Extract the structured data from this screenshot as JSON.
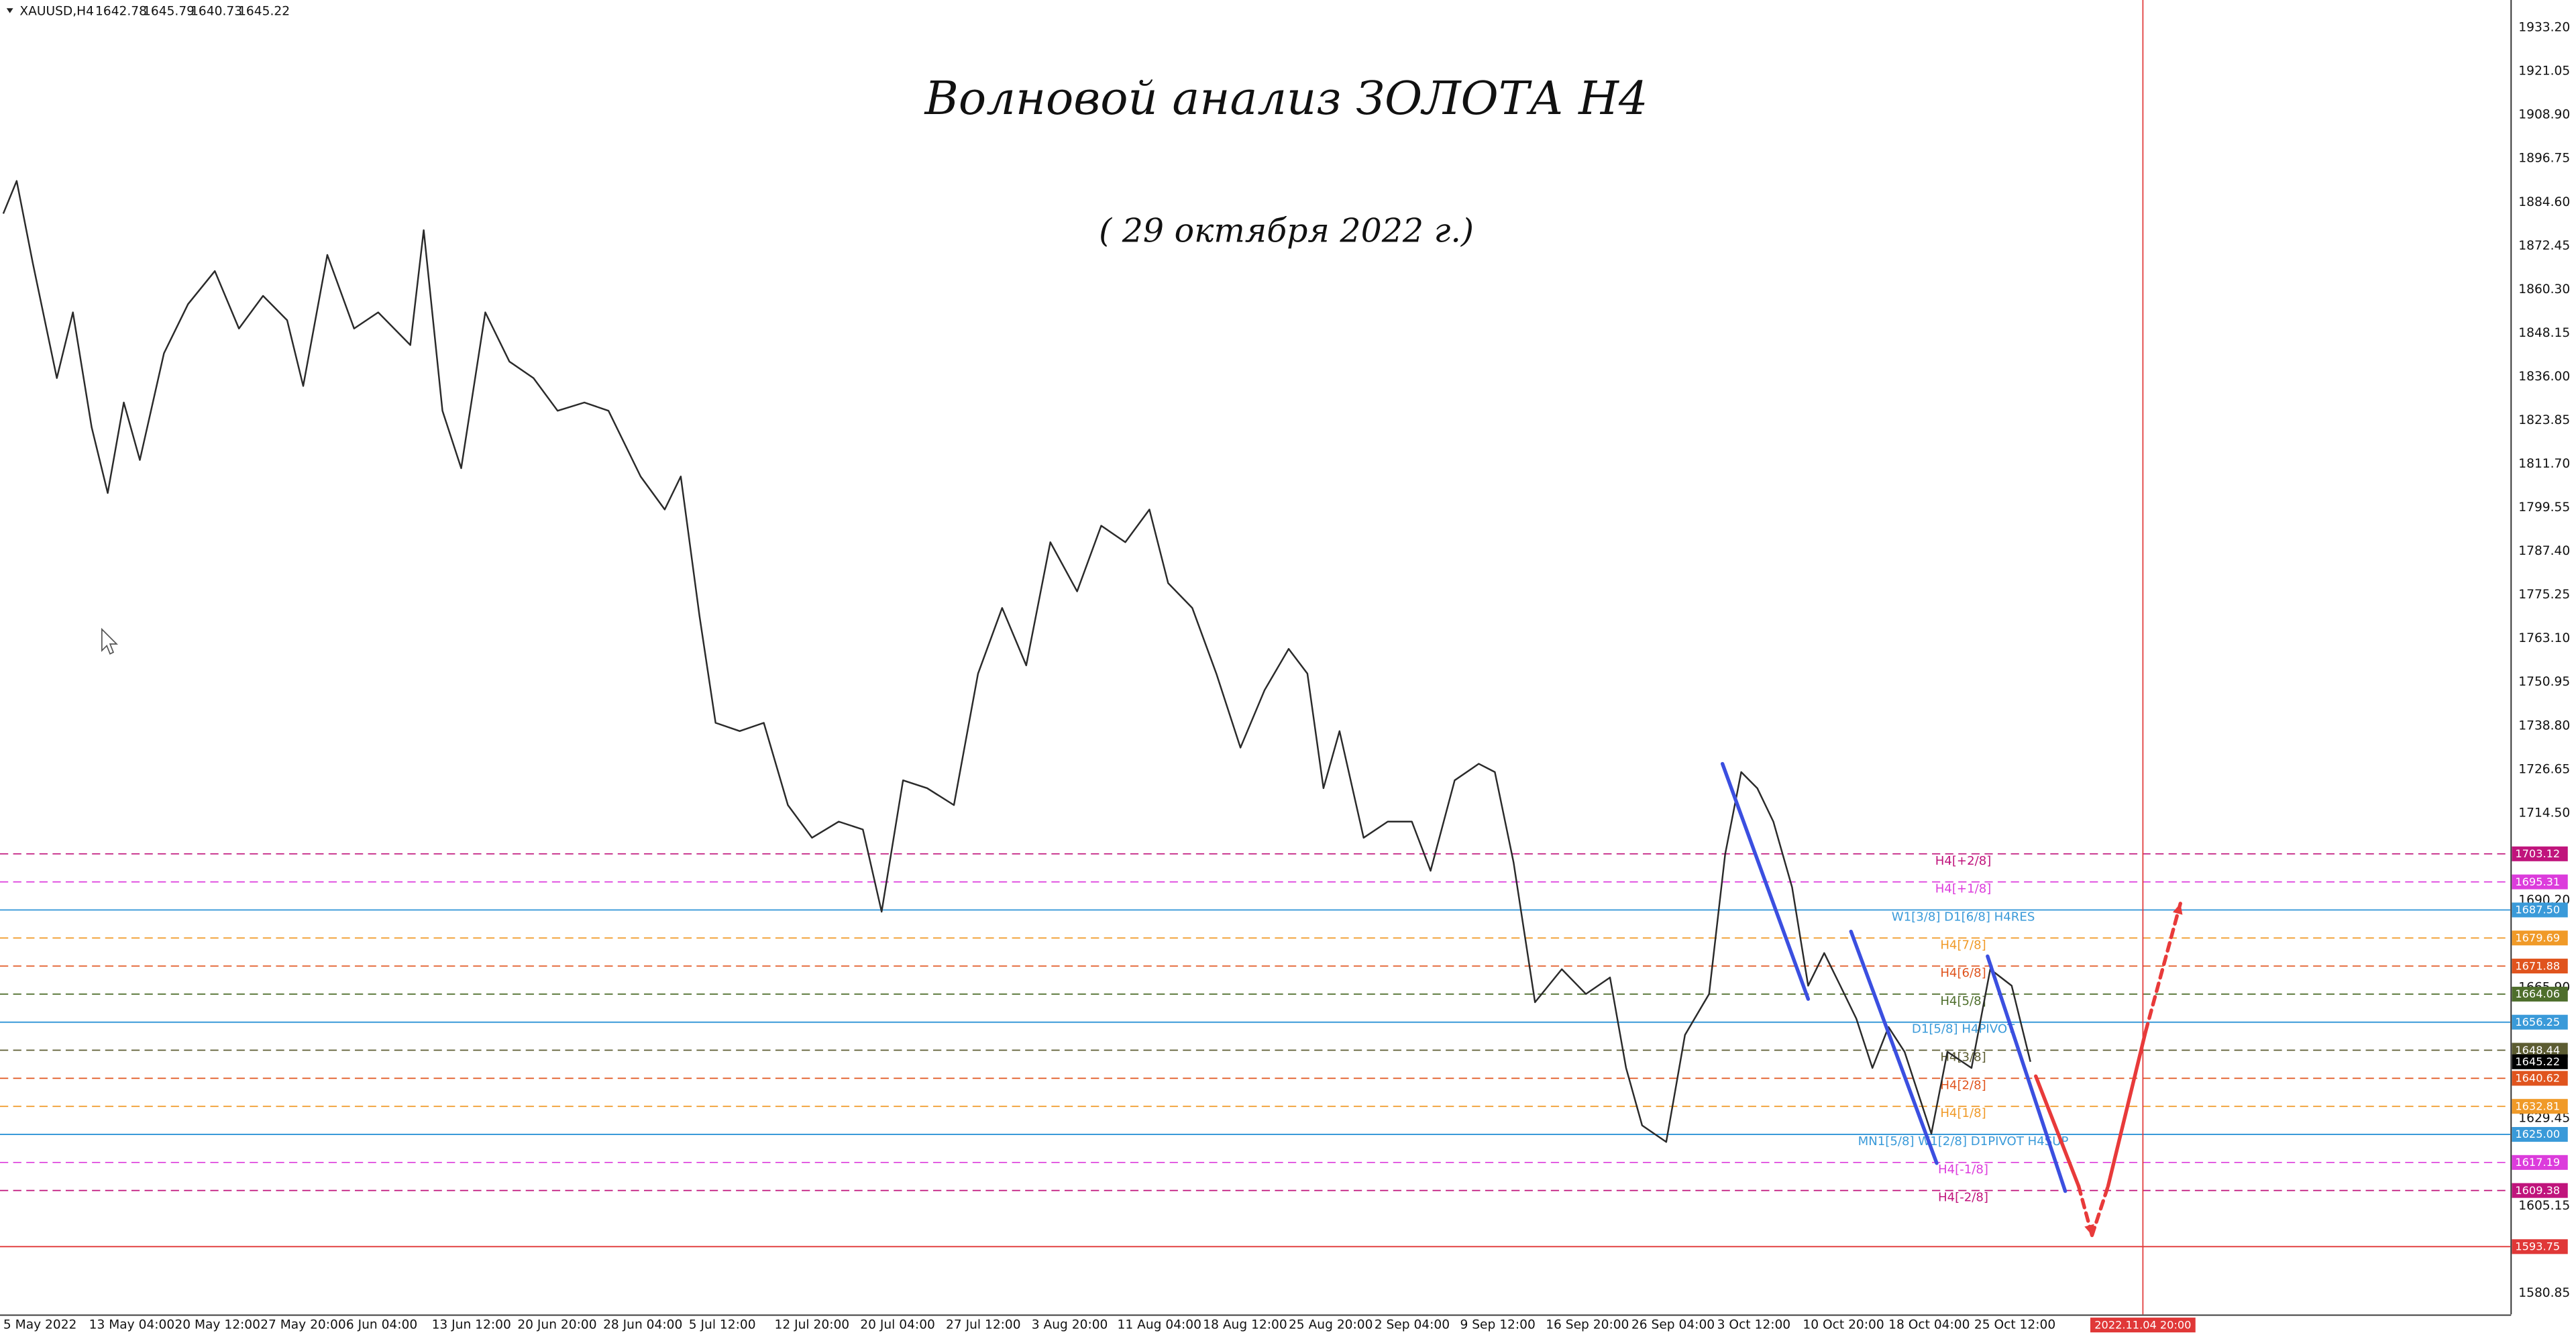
{
  "chart_data": {
    "type": "line",
    "title": "Волновой анализ ЗОЛОТА H4",
    "subtitle": "( 29 октября 2022 г.)",
    "symbol": "XAUUSD,H4",
    "ohlc": [
      1642.78,
      1645.79,
      1640.73,
      1645.22
    ],
    "color": "#2a2a2a",
    "grid": true,
    "x": [
      0,
      5,
      11,
      20,
      26,
      33,
      39,
      45,
      51,
      60,
      69,
      79,
      88,
      97,
      106,
      112,
      121,
      131,
      140,
      152,
      157,
      164,
      171,
      180,
      189,
      198,
      207,
      217,
      226,
      238,
      247,
      253,
      260,
      266,
      275,
      284,
      293,
      302,
      312,
      321,
      328,
      336,
      345,
      355,
      364,
      373,
      382,
      391,
      401,
      410,
      419,
      428,
      435,
      444,
      453,
      462,
      471,
      480,
      487,
      493,
      499,
      508,
      517,
      526,
      533,
      542,
      551,
      557,
      564,
      572,
      582,
      591,
      600,
      606,
      612,
      621,
      628,
      637,
      643,
      649,
      655,
      661,
      668,
      674,
      680,
      686,
      692,
      698,
      704,
      710,
      720,
      726,
      735,
      742,
      750,
      757
    ],
    "values": [
      1881.4,
      1890.5,
      1867.7,
      1835.6,
      1853.9,
      1821.9,
      1803.6,
      1828.8,
      1812.8,
      1842.5,
      1856.2,
      1865.4,
      1849.4,
      1858.5,
      1851.7,
      1833.4,
      1869.9,
      1849.4,
      1853.9,
      1844.8,
      1876.8,
      1826.5,
      1810.5,
      1853.9,
      1840.2,
      1835.6,
      1826.5,
      1828.8,
      1826.5,
      1808.2,
      1799.0,
      1808.2,
      1769.3,
      1739.6,
      1737.3,
      1739.6,
      1716.7,
      1707.6,
      1712.1,
      1709.9,
      1687.0,
      1723.6,
      1721.4,
      1716.7,
      1753.3,
      1771.6,
      1755.6,
      1789.9,
      1776.2,
      1794.5,
      1789.9,
      1799.0,
      1778.5,
      1771.6,
      1753.3,
      1732.7,
      1748.7,
      1760.2,
      1753.3,
      1721.4,
      1737.3,
      1707.6,
      1712.1,
      1712.1,
      1698.4,
      1723.6,
      1728.2,
      1725.9,
      1700.7,
      1661.8,
      1671.0,
      1664.1,
      1668.7,
      1643.5,
      1627.5,
      1622.9,
      1652.7,
      1664.1,
      1703.0,
      1725.9,
      1721.4,
      1712.1,
      1693.8,
      1666.4,
      1675.5,
      1666.4,
      1657.2,
      1643.5,
      1654.9,
      1648.0,
      1625.2,
      1648.0,
      1643.5,
      1671.0,
      1666.4,
      1645.22
    ],
    "xlim": [
      0,
      936
    ],
    "ylim": [
      1574.9,
      1940.87
    ],
    "yticks": [
      {
        "value": 1933.2,
        "label": "1933.20"
      },
      {
        "value": 1921.05,
        "label": "1921.05"
      },
      {
        "value": 1908.9,
        "label": "1908.90"
      },
      {
        "value": 1896.75,
        "label": "1896.75"
      },
      {
        "value": 1884.6,
        "label": "1884.60"
      },
      {
        "value": 1872.45,
        "label": "1872.45"
      },
      {
        "value": 1860.3,
        "label": "1860.30"
      },
      {
        "value": 1848.15,
        "label": "1848.15"
      },
      {
        "value": 1836.0,
        "label": "1836.00"
      },
      {
        "value": 1823.85,
        "label": "1823.85"
      },
      {
        "value": 1811.7,
        "label": "1811.70"
      },
      {
        "value": 1799.55,
        "label": "1799.55"
      },
      {
        "value": 1787.4,
        "label": "1787.40"
      },
      {
        "value": 1775.25,
        "label": "1775.25"
      },
      {
        "value": 1763.1,
        "label": "1763.10"
      },
      {
        "value": 1750.95,
        "label": "1750.95"
      },
      {
        "value": 1738.8,
        "label": "1738.80"
      },
      {
        "value": 1726.65,
        "label": "1726.65"
      },
      {
        "value": 1714.5,
        "label": "1714.50"
      },
      {
        "value": 1690.2,
        "label": "1690.20"
      },
      {
        "value": 1665.9,
        "label": "1665.90"
      },
      {
        "value": 1629.45,
        "label": "1629.45"
      },
      {
        "value": 1605.15,
        "label": "1605.15"
      },
      {
        "value": 1580.85,
        "label": "1580.85"
      }
    ],
    "xticks": [
      {
        "value": 0,
        "label": "5 May 2022"
      },
      {
        "value": 32,
        "label": "13 May 04:00"
      },
      {
        "value": 64,
        "label": "20 May 12:00"
      },
      {
        "value": 96,
        "label": "27 May 20:00"
      },
      {
        "value": 128,
        "label": "6 Jun 04:00"
      },
      {
        "value": 160,
        "label": "13 Jun 12:00"
      },
      {
        "value": 192,
        "label": "20 Jun 20:00"
      },
      {
        "value": 224,
        "label": "28 Jun 04:00"
      },
      {
        "value": 256,
        "label": "5 Jul 12:00"
      },
      {
        "value": 288,
        "label": "12 Jul 20:00"
      },
      {
        "value": 320,
        "label": "20 Jul 04:00"
      },
      {
        "value": 352,
        "label": "27 Jul 12:00"
      },
      {
        "value": 384,
        "label": "3 Aug 20:00"
      },
      {
        "value": 416,
        "label": "11 Aug 04:00"
      },
      {
        "value": 448,
        "label": "18 Aug 12:00"
      },
      {
        "value": 480,
        "label": "25 Aug 20:00"
      },
      {
        "value": 512,
        "label": "2 Sep 04:00"
      },
      {
        "value": 544,
        "label": "9 Sep 12:00"
      },
      {
        "value": 576,
        "label": "16 Sep 20:00"
      },
      {
        "value": 608,
        "label": "26 Sep 04:00"
      },
      {
        "value": 640,
        "label": "3 Oct 12:00"
      },
      {
        "value": 672,
        "label": "10 Oct 20:00"
      },
      {
        "value": 704,
        "label": "18 Oct 04:00"
      },
      {
        "value": 736,
        "label": "25 Oct 12:00"
      }
    ],
    "marker": {
      "x": 799,
      "label": "2022.11.04 20:00",
      "color": "#e03838"
    },
    "levels": [
      {
        "value": 1703.12,
        "value_label": "1703.12",
        "name": "H4[+2/8]",
        "color": "#c0147c",
        "style": "dashed"
      },
      {
        "value": 1695.31,
        "value_label": "1695.31",
        "name": "H4[+1/8]",
        "color": "#dc3cdc",
        "style": "dashed"
      },
      {
        "value": 1687.5,
        "value_label": "1687.50",
        "name": "W1[3/8] D1[6/8] H4RES",
        "color": "#3a9ad9",
        "style": "solid"
      },
      {
        "value": 1679.69,
        "value_label": "1679.69",
        "name": "H4[7/8]",
        "color": "#f09a28",
        "style": "dashed"
      },
      {
        "value": 1671.88,
        "value_label": "1671.88",
        "name": "H4[6/8]",
        "color": "#e0541e",
        "style": "dashed"
      },
      {
        "value": 1664.06,
        "value_label": "1664.06",
        "name": "H4[5/8]",
        "color": "#4e6e2c",
        "style": "dashed"
      },
      {
        "value": 1656.25,
        "value_label": "1656.25",
        "name": "D1[5/8] H4PIVOT",
        "color": "#3a9ad9",
        "style": "solid"
      },
      {
        "value": 1648.44,
        "value_label": "1648.44",
        "name": "H4[3/8]",
        "color": "#5c5c32",
        "style": "dashed"
      },
      {
        "value": 1640.62,
        "value_label": "1640.62",
        "name": "H4[2/8]",
        "color": "#e0541e",
        "style": "dashed"
      },
      {
        "value": 1632.81,
        "value_label": "1632.81",
        "name": "H4[1/8]",
        "color": "#f09a28",
        "style": "dashed"
      },
      {
        "value": 1625.0,
        "value_label": "1625.00",
        "name": "MN1[5/8] W1[2/8] D1PIVOT H4SUP",
        "color": "#3a9ad9",
        "style": "solid"
      },
      {
        "value": 1617.19,
        "value_label": "1617.19",
        "name": "H4[-1/8]",
        "color": "#dc3cdc",
        "style": "dashed"
      },
      {
        "value": 1609.38,
        "value_label": "1609.38",
        "name": "H4[-2/8]",
        "color": "#c0147c",
        "style": "dashed"
      },
      {
        "value": 1593.75,
        "value_label": "1593.75",
        "color": "#e03838",
        "style": "solid"
      }
    ],
    "drawings": [
      {
        "x": [
          642,
          674
        ],
        "y": [
          1728.2,
          1662.7
        ],
        "color": "#3b4fe0",
        "style": "solid"
      },
      {
        "x": [
          690,
          722
        ],
        "y": [
          1681.5,
          1617.0
        ],
        "color": "#3b4fe0",
        "style": "solid"
      },
      {
        "x": [
          741,
          770
        ],
        "y": [
          1674.6,
          1609.2
        ],
        "color": "#3b4fe0",
        "style": "solid"
      },
      {
        "x": [
          759,
          775
        ],
        "y": [
          1641.2,
          1610.6
        ],
        "color": "#e83a3a",
        "style": "solid"
      },
      {
        "x": [
          775,
          780
        ],
        "y": [
          1610.6,
          1596.9
        ],
        "color": "#e83a3a",
        "style": "dashed",
        "arrow": true
      },
      {
        "x": [
          780,
          786
        ],
        "y": [
          1596.9,
          1610.6
        ],
        "color": "#e83a3a",
        "style": "dashed"
      },
      {
        "x": [
          786,
          800
        ],
        "y": [
          1610.6,
          1653.6
        ],
        "color": "#e83a3a",
        "style": "solid"
      },
      {
        "x": [
          800,
          813
        ],
        "y": [
          1653.6,
          1689.3
        ],
        "color": "#e83a3a",
        "style": "dashed",
        "arrow": true
      }
    ]
  }
}
